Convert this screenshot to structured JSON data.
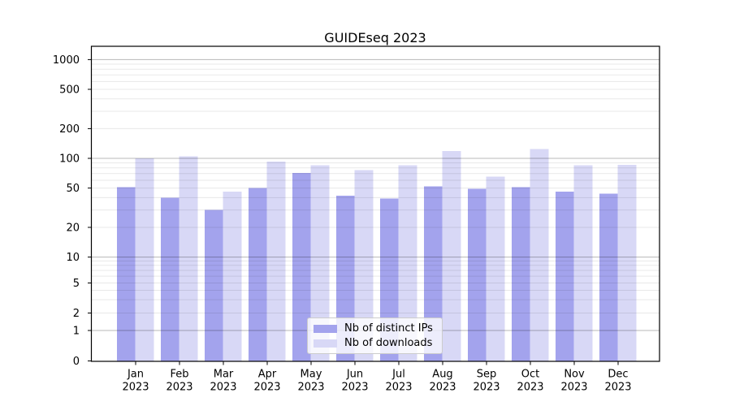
{
  "figure": {
    "title": "GUIDEseq 2023"
  },
  "chart_data": {
    "type": "bar",
    "title": "GUIDEseq 2023",
    "categories": [
      "Jan 2023",
      "Feb 2023",
      "Mar 2023",
      "Apr 2023",
      "May 2023",
      "Jun 2023",
      "Jul 2023",
      "Aug 2023",
      "Sep 2023",
      "Oct 2023",
      "Nov 2023",
      "Dec 2023"
    ],
    "x_tick_months": [
      "Jan",
      "Feb",
      "Mar",
      "Apr",
      "May",
      "Jun",
      "Jul",
      "Aug",
      "Sep",
      "Oct",
      "Nov",
      "Dec"
    ],
    "x_tick_year": "2023",
    "series": [
      {
        "name": "Nb of distinct IPs",
        "color": "#a3a3ed",
        "values": [
          51,
          40,
          30,
          50,
          71,
          42,
          39,
          52,
          49,
          51,
          46,
          44
        ]
      },
      {
        "name": "Nb of downloads",
        "color": "#d8d8f6",
        "values": [
          100,
          105,
          46,
          93,
          85,
          76,
          85,
          119,
          65,
          124,
          85,
          86
        ]
      }
    ],
    "yscale": "symlog",
    "y_ticks": [
      0,
      1,
      2,
      5,
      10,
      20,
      50,
      100,
      200,
      500,
      1000
    ],
    "ylim": [
      0,
      1365
    ],
    "xlabel": "",
    "ylabel": "",
    "grid": "both",
    "legend_position": "lower-center",
    "colors": {
      "major_grid": "rgba(0,0,0,0.28)",
      "minor_grid": "rgba(0,0,0,0.09)",
      "axis": "#000000",
      "background": "#ffffff"
    }
  }
}
